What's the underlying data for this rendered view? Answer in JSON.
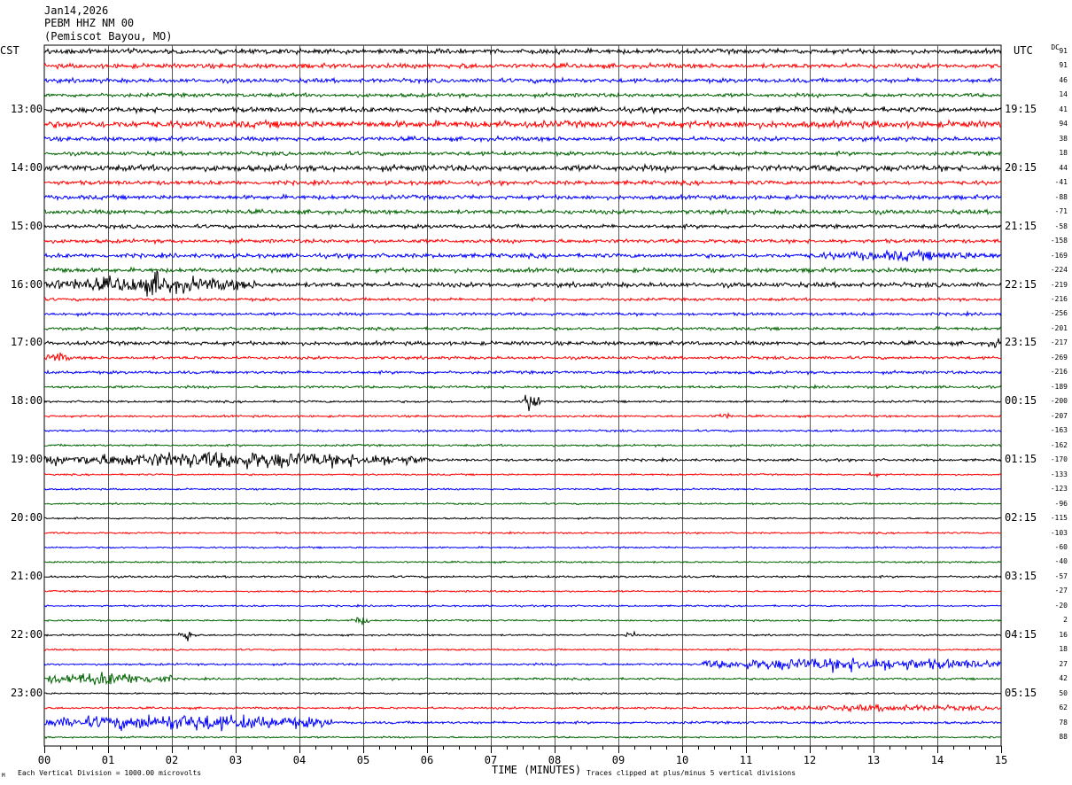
{
  "header": {
    "date": "Jan14,2026",
    "station": "PEBM HHZ NM 00",
    "location": "(Pemiscot Bayou, MO)"
  },
  "left_axis_label": "CST",
  "right_axis_label": "UTC",
  "dc_label": "DC",
  "footer": {
    "left_note": "Each Vertical Division = 1000.00 microvolts",
    "center_label": "TIME (MINUTES)",
    "right_note": "Traces clipped at plus/minus 5 vertical divisions",
    "corner_mark": "M"
  },
  "colors": {
    "trace_cycle": [
      "#000000",
      "#ff0000",
      "#0000ff",
      "#006400"
    ],
    "grid": "#000000",
    "background": "#ffffff"
  },
  "chart_data": {
    "type": "helicorder",
    "x_axis": {
      "label": "TIME (MINUTES)",
      "range": [
        0,
        15
      ],
      "ticks": [
        "00",
        "01",
        "02",
        "03",
        "04",
        "05",
        "06",
        "07",
        "08",
        "09",
        "10",
        "11",
        "12",
        "13",
        "14",
        "15"
      ]
    },
    "minutes_per_line": 15,
    "row_count": 48,
    "left_hour_labels": [
      "13:00",
      "14:00",
      "15:00",
      "16:00",
      "17:00",
      "18:00",
      "19:00",
      "20:00",
      "21:00",
      "22:00",
      "23:00"
    ],
    "right_hour_labels": [
      "19:15",
      "20:15",
      "21:15",
      "22:15",
      "23:15",
      "00:15",
      "01:15",
      "02:15",
      "03:15",
      "04:15",
      "05:15"
    ],
    "first_labeled_row": 4,
    "dc_offsets": [
      91,
      91,
      46,
      14,
      41,
      94,
      38,
      18,
      44,
      -41,
      -88,
      -71,
      -58,
      -158,
      -169,
      -224,
      -219,
      -216,
      -256,
      -201,
      -217,
      -269,
      -216,
      -189,
      -200,
      -207,
      -163,
      -162,
      -170,
      -133,
      -123,
      -96,
      -115,
      -103,
      -60,
      -40,
      -57,
      -27,
      -20,
      2,
      16,
      18,
      27,
      42,
      50,
      62,
      78,
      88
    ],
    "row_amplitude_scale": [
      1.1,
      1.1,
      1.0,
      0.9,
      1.2,
      1.6,
      1.0,
      0.9,
      1.4,
      1.0,
      1.0,
      1.0,
      0.9,
      0.9,
      1.0,
      1.0,
      1.1,
      0.7,
      0.7,
      0.7,
      0.9,
      0.7,
      0.7,
      0.6,
      0.5,
      0.5,
      0.5,
      0.5,
      0.6,
      0.4,
      0.4,
      0.4,
      0.4,
      0.4,
      0.4,
      0.4,
      0.5,
      0.4,
      0.4,
      0.4,
      0.4,
      0.4,
      0.5,
      0.5,
      0.4,
      0.5,
      0.6,
      0.4
    ],
    "events": [
      {
        "row": 1,
        "start": 6.4,
        "end": 6.8,
        "amplitude": 2.0
      },
      {
        "row": 2,
        "start": 7.0,
        "end": 9.0,
        "amplitude": 1.5
      },
      {
        "row": 5,
        "start": 2.5,
        "end": 5.0,
        "amplitude": 2.0
      },
      {
        "row": 8,
        "start": 12.3,
        "end": 12.5,
        "amplitude": 2.5
      },
      {
        "row": 14,
        "start": 12.0,
        "end": 15.0,
        "amplitude": 3.0
      },
      {
        "row": 15,
        "start": 0.0,
        "end": 0.6,
        "amplitude": 2.0
      },
      {
        "row": 16,
        "start": 0.0,
        "end": 3.3,
        "amplitude": 5.0
      },
      {
        "row": 16,
        "start": 1.7,
        "end": 1.9,
        "amplitude": 12.0
      },
      {
        "row": 20,
        "start": 14.8,
        "end": 15.0,
        "amplitude": 3.0
      },
      {
        "row": 21,
        "start": 0.0,
        "end": 0.4,
        "amplitude": 3.0
      },
      {
        "row": 24,
        "start": 7.5,
        "end": 7.8,
        "amplitude": 6.0
      },
      {
        "row": 25,
        "start": 10.5,
        "end": 10.8,
        "amplitude": 2.0
      },
      {
        "row": 28,
        "start": 0.0,
        "end": 6.0,
        "amplitude": 5.0
      },
      {
        "row": 29,
        "start": 12.9,
        "end": 13.1,
        "amplitude": 1.5
      },
      {
        "row": 39,
        "start": 4.8,
        "end": 5.1,
        "amplitude": 2.5
      },
      {
        "row": 40,
        "start": 2.1,
        "end": 2.4,
        "amplitude": 3.5
      },
      {
        "row": 40,
        "start": 9.1,
        "end": 9.3,
        "amplitude": 2.5
      },
      {
        "row": 42,
        "start": 10.3,
        "end": 15.0,
        "amplitude": 4.0
      },
      {
        "row": 43,
        "start": 0.0,
        "end": 2.0,
        "amplitude": 4.0
      },
      {
        "row": 45,
        "start": 11.5,
        "end": 15.0,
        "amplitude": 2.0
      },
      {
        "row": 46,
        "start": 0.0,
        "end": 4.5,
        "amplitude": 5.0
      }
    ]
  }
}
